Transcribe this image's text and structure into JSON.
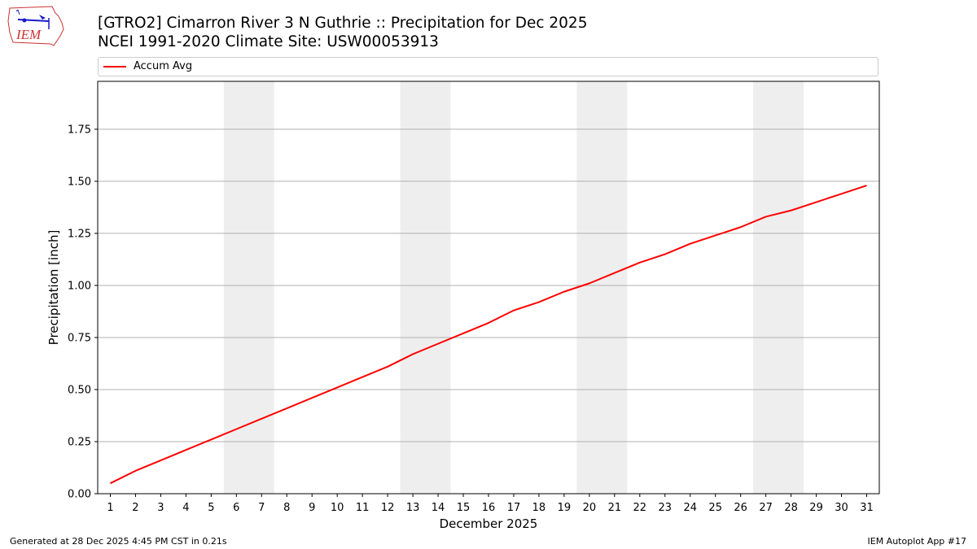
{
  "header": {
    "title_line1": "[GTRO2] Cimarron River 3 N Guthrie :: Precipitation for Dec 2025",
    "title_line2": "NCEI 1991-2020 Climate Site: USW00053913",
    "logo_text": "IEM"
  },
  "legend": {
    "items": [
      {
        "label": "Accum Avg",
        "color": "#ff0000"
      }
    ]
  },
  "footer": {
    "left": "Generated at 28 Dec 2025 4:45 PM CST in 0.21s",
    "right": "IEM Autoplot App #17"
  },
  "chart_data": {
    "type": "line",
    "title": "[GTRO2] Cimarron River 3 N Guthrie :: Precipitation for Dec 2025",
    "subtitle": "NCEI 1991-2020 Climate Site: USW00053913",
    "xlabel": "December 2025",
    "ylabel": "Precipitation [inch]",
    "x": [
      1,
      2,
      3,
      4,
      5,
      6,
      7,
      8,
      9,
      10,
      11,
      12,
      13,
      14,
      15,
      16,
      17,
      18,
      19,
      20,
      21,
      22,
      23,
      24,
      25,
      26,
      27,
      28,
      29,
      30,
      31
    ],
    "series": [
      {
        "name": "Accum Avg",
        "color": "#ff0000",
        "values": [
          0.05,
          0.11,
          0.16,
          0.21,
          0.26,
          0.31,
          0.36,
          0.41,
          0.46,
          0.51,
          0.56,
          0.61,
          0.67,
          0.72,
          0.77,
          0.82,
          0.88,
          0.92,
          0.97,
          1.01,
          1.06,
          1.11,
          1.15,
          1.2,
          1.24,
          1.28,
          1.33,
          1.36,
          1.4,
          1.44,
          1.48
        ]
      }
    ],
    "weekend_bands": [
      [
        5.5,
        7.5
      ],
      [
        12.5,
        14.5
      ],
      [
        19.5,
        21.5
      ],
      [
        26.5,
        28.5
      ]
    ],
    "band_color": "#eeeeee",
    "xlim": [
      0.5,
      31.5
    ],
    "ylim": [
      0,
      1.98
    ],
    "yticks": [
      "0.00",
      "0.25",
      "0.50",
      "0.75",
      "1.00",
      "1.25",
      "1.50",
      "1.75"
    ],
    "xticks": [
      "1",
      "2",
      "3",
      "4",
      "5",
      "6",
      "7",
      "8",
      "9",
      "10",
      "11",
      "12",
      "13",
      "14",
      "15",
      "16",
      "17",
      "18",
      "19",
      "20",
      "21",
      "22",
      "23",
      "24",
      "25",
      "26",
      "27",
      "28",
      "29",
      "30",
      "31"
    ],
    "grid": "y",
    "legend_position": "top"
  }
}
